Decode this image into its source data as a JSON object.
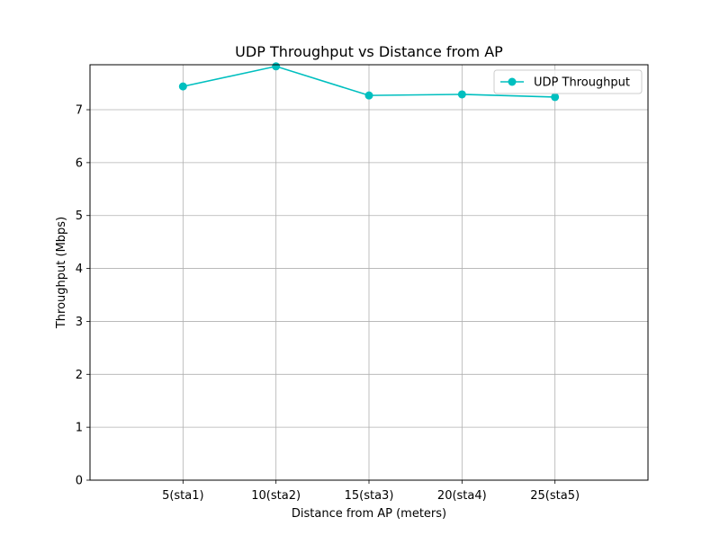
{
  "chart_data": {
    "type": "line",
    "title": "UDP Throughput vs Distance from AP",
    "xlabel": "Distance from AP (meters)",
    "ylabel": "Throughput (Mbps)",
    "categories": [
      "5(sta1)",
      "10(sta2)",
      "15(sta3)",
      "20(sta4)",
      "25(sta5)"
    ],
    "series": [
      {
        "name": "UDP Throughput",
        "values": [
          7.44,
          7.82,
          7.27,
          7.29,
          7.24
        ],
        "color": "#00BFBF",
        "marker": "circle"
      }
    ],
    "ylim": [
      0,
      7.85
    ],
    "yticks": [
      "0",
      "1",
      "2",
      "3",
      "4",
      "5",
      "6",
      "7"
    ],
    "grid": true,
    "legend_position": "top-right"
  }
}
